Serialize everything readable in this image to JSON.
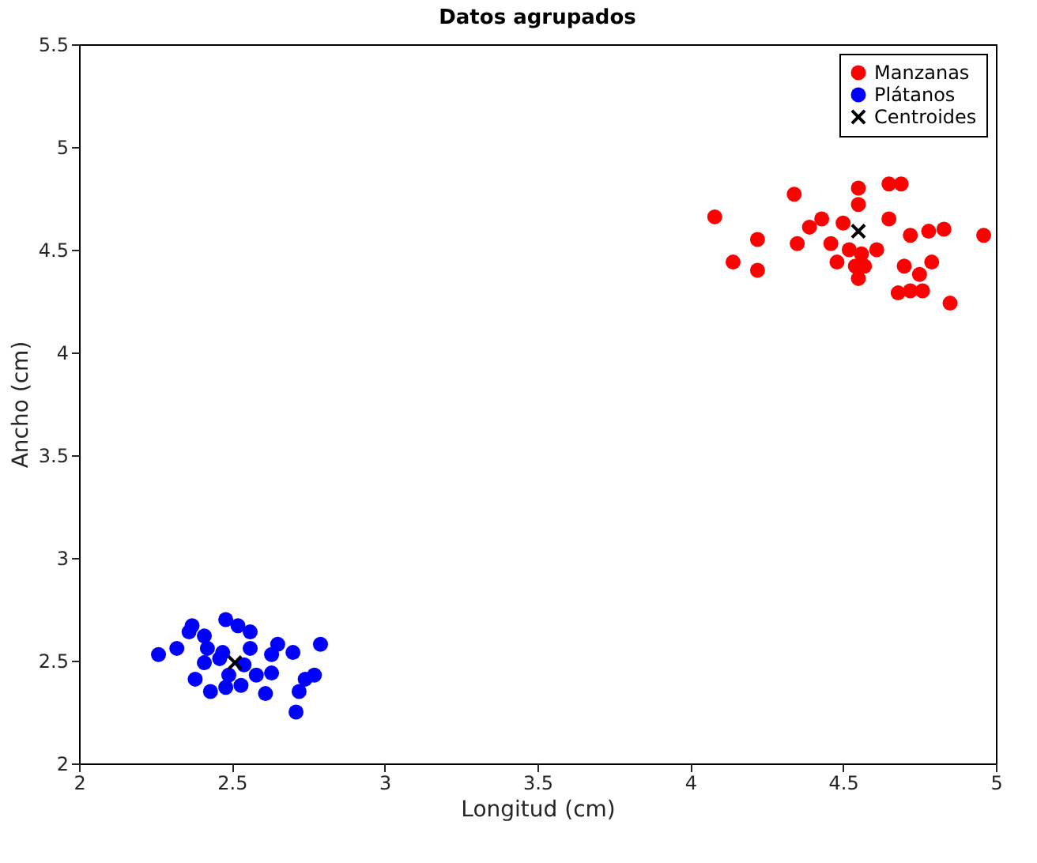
{
  "chart_data": {
    "type": "scatter",
    "title": "Datos agrupados",
    "xlabel": "Longitud (cm)",
    "ylabel": "Ancho (cm)",
    "xlim": [
      2,
      5
    ],
    "ylim": [
      2,
      5.5
    ],
    "xticks": [
      2,
      2.5,
      3,
      3.5,
      4,
      4.5,
      5
    ],
    "yticks": [
      2,
      2.5,
      3,
      3.5,
      4,
      4.5,
      5,
      5.5
    ],
    "grid": false,
    "legend": "top right",
    "series": [
      {
        "name": "Manzanas",
        "color": "#ff0000",
        "marker": "circle",
        "x": [
          4.08,
          4.22,
          4.14,
          4.22,
          4.34,
          4.35,
          4.39,
          4.43,
          4.46,
          4.5,
          4.48,
          4.52,
          4.54,
          4.55,
          4.55,
          4.55,
          4.56,
          4.61,
          4.57,
          4.65,
          4.69,
          4.65,
          4.72,
          4.78,
          4.83,
          4.96,
          4.7,
          4.79,
          4.75,
          4.76,
          4.68,
          4.72,
          4.85
        ],
        "values": [
          4.66,
          4.55,
          4.44,
          4.4,
          4.77,
          4.53,
          4.61,
          4.65,
          4.53,
          4.63,
          4.44,
          4.5,
          4.42,
          4.36,
          4.8,
          4.72,
          4.48,
          4.5,
          4.42,
          4.82,
          4.82,
          4.65,
          4.57,
          4.59,
          4.6,
          4.57,
          4.42,
          4.44,
          4.38,
          4.3,
          4.29,
          4.3,
          4.24
        ]
      },
      {
        "name": "Plátanos",
        "color": "#0000ff",
        "marker": "circle",
        "x": [
          2.26,
          2.32,
          2.36,
          2.37,
          2.41,
          2.48,
          2.52,
          2.56,
          2.42,
          2.41,
          2.46,
          2.38,
          2.43,
          2.48,
          2.53,
          2.49,
          2.58,
          2.61,
          2.63,
          2.65,
          2.7,
          2.63,
          2.79,
          2.77,
          2.74,
          2.72,
          2.71,
          2.56,
          2.54,
          2.47
        ],
        "values": [
          2.53,
          2.56,
          2.64,
          2.67,
          2.62,
          2.7,
          2.67,
          2.64,
          2.56,
          2.49,
          2.51,
          2.41,
          2.35,
          2.37,
          2.38,
          2.43,
          2.43,
          2.34,
          2.53,
          2.58,
          2.54,
          2.44,
          2.58,
          2.43,
          2.41,
          2.35,
          2.25,
          2.56,
          2.48,
          2.54
        ]
      },
      {
        "name": "Centroides",
        "color": "#000000",
        "marker": "cross",
        "x": [
          4.55,
          2.51
        ],
        "values": [
          4.59,
          2.49
        ]
      }
    ]
  }
}
